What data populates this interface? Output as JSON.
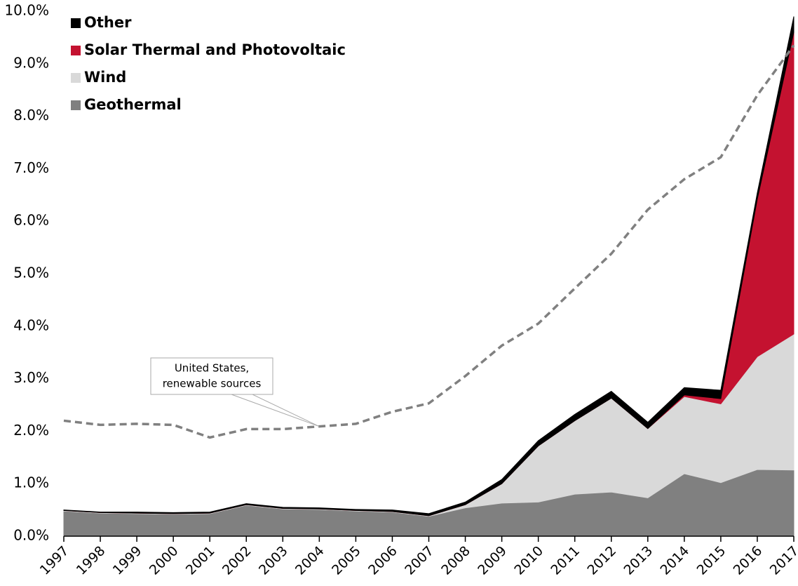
{
  "chart_data": {
    "type": "stacked_area",
    "categories": [
      "1997",
      "1998",
      "1999",
      "2000",
      "2001",
      "2002",
      "2003",
      "2004",
      "2005",
      "2006",
      "2007",
      "2008",
      "2009",
      "2010",
      "2011",
      "2012",
      "2013",
      "2014",
      "2015",
      "2016",
      "2017"
    ],
    "series": [
      {
        "name": "Geothermal",
        "color": "#808080",
        "values": [
          0.48,
          0.44,
          0.43,
          0.42,
          0.43,
          0.59,
          0.52,
          0.51,
          0.48,
          0.46,
          0.38,
          0.54,
          0.63,
          0.65,
          0.8,
          0.84,
          0.73,
          1.19,
          1.02,
          1.27,
          1.26
        ]
      },
      {
        "name": "Wind",
        "color": "#d9d9d9",
        "values": [
          0.01,
          0.01,
          0.01,
          0.01,
          0.01,
          0.01,
          0.01,
          0.01,
          0.01,
          0.01,
          0.01,
          0.06,
          0.37,
          1.07,
          1.4,
          1.79,
          1.32,
          1.47,
          1.5,
          2.15,
          2.59
        ]
      },
      {
        "name": "Solar Thermal and Photovoltaic",
        "color": "#c41230",
        "values": [
          0,
          0,
          0,
          0,
          0,
          0,
          0,
          0,
          0,
          0,
          0,
          0,
          0,
          0,
          0,
          0,
          0,
          0.03,
          0.1,
          3.0,
          5.75
        ]
      },
      {
        "name": "Other",
        "color": "#000000",
        "values": [
          0.01,
          0.01,
          0.02,
          0.02,
          0.02,
          0.02,
          0.02,
          0.02,
          0.02,
          0.03,
          0.04,
          0.05,
          0.08,
          0.1,
          0.12,
          0.13,
          0.12,
          0.14,
          0.16,
          0.12,
          0.3
        ]
      }
    ],
    "line": {
      "name": "United States, renewable sources",
      "color": "#808080",
      "dashed": true,
      "values": [
        2.2,
        2.12,
        2.14,
        2.12,
        1.88,
        2.04,
        2.04,
        2.09,
        2.14,
        2.37,
        2.53,
        3.05,
        3.63,
        4.05,
        4.72,
        5.38,
        6.22,
        6.8,
        7.22,
        8.4,
        9.35
      ]
    },
    "annotation": [
      "United States,",
      "renewable sources"
    ],
    "ylim": [
      0,
      10
    ],
    "yticks": [
      {
        "value": 0,
        "label": "0.0%"
      },
      {
        "value": 1,
        "label": "1.0%"
      },
      {
        "value": 2,
        "label": "2.0%"
      },
      {
        "value": 3,
        "label": "3.0%"
      },
      {
        "value": 4,
        "label": "4.0%"
      },
      {
        "value": 5,
        "label": "5.0%"
      },
      {
        "value": 6,
        "label": "6.0%"
      },
      {
        "value": 7,
        "label": "7.0%"
      },
      {
        "value": 8,
        "label": "8.0%"
      },
      {
        "value": 9,
        "label": "9.0%"
      },
      {
        "value": 10,
        "label": "10.0%"
      }
    ],
    "legend": "top-left"
  }
}
